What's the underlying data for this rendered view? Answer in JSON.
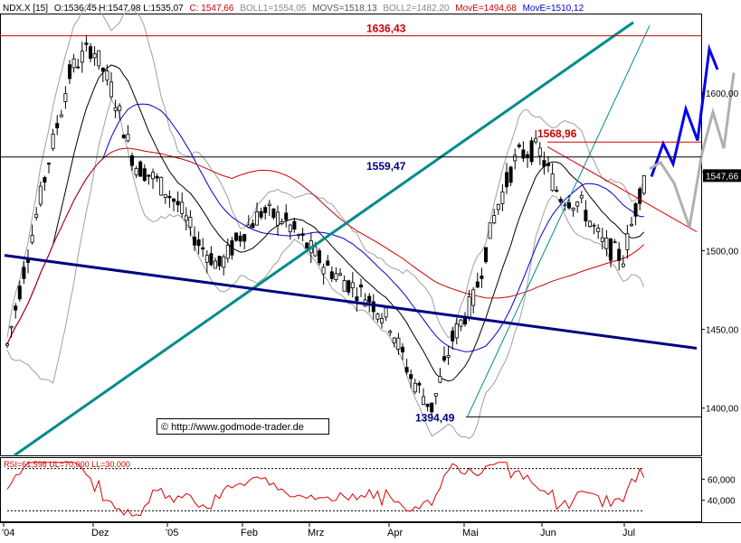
{
  "header": {
    "symbol": "NDX.X [15]",
    "ohl": "O:1536,45 H:1547,98 L:1535,07",
    "close": "C: 1547,66",
    "boll1": "BOLL1=1554,05",
    "movs": "MOVS=1518,13",
    "boll2": "BOLL2=1482,20",
    "move_red": "MovE=1494,68",
    "move_blue": "MovE=1510,12"
  },
  "copyright": "© http://www.godmode-trader.de",
  "price_panel": {
    "y_ticks": [
      "1600,00",
      "1550,00",
      "1500,00",
      "1450,00",
      "1400,00"
    ],
    "ylim": [
      1370,
      1650
    ],
    "last_price_label": "1547,66",
    "levels": [
      {
        "label": "1636,43",
        "value": 1636.43,
        "color": "#cc0000",
        "line": "#cc0000"
      },
      {
        "label": "1559,47",
        "value": 1559.47,
        "color": "#000080",
        "line": "#000000"
      },
      {
        "label": "1568,96",
        "value": 1568.96,
        "color": "#cc0000",
        "line": "#cc0000"
      },
      {
        "label": "1394,49",
        "value": 1394.49,
        "color": "#000080",
        "line": "#000000"
      }
    ]
  },
  "rsi_panel": {
    "label": "RSI=61,598 UL=70,000 LL=30,000",
    "y_ticks": [
      "60,000",
      "40,000"
    ],
    "upper": 70,
    "lower": 30,
    "value": 61.598
  },
  "x_ticks": [
    "'04",
    "Dez",
    "'05",
    "Feb",
    "Mrz",
    "Apr",
    "Mai",
    "Jun",
    "Jul"
  ],
  "colors": {
    "candle": "#000000",
    "bollinger": "#a0a0a0",
    "ma_short": "#000000",
    "ma_blue": "#0000cc",
    "ma_red": "#cc0000",
    "trend_teal": "#008b8b",
    "trend_navy": "#000080",
    "projection_blue": "#0000ee",
    "projection_gray": "#b0b0b0",
    "rsi": "#dd0000"
  },
  "chart_data": {
    "type": "candlestick",
    "title": "NDX.X",
    "x": [
      "Nov 2004",
      "Dez",
      "Jan 2005",
      "Feb",
      "Mrz",
      "Apr",
      "Mai",
      "Jun",
      "Jul"
    ],
    "close_path": [
      1440,
      1500,
      1560,
      1615,
      1630,
      1600,
      1555,
      1545,
      1530,
      1505,
      1490,
      1510,
      1525,
      1520,
      1505,
      1490,
      1480,
      1470,
      1455,
      1420,
      1400,
      1445,
      1470,
      1525,
      1560,
      1565,
      1535,
      1530,
      1505,
      1495,
      1547.66
    ],
    "series": [
      {
        "name": "BOLL1",
        "last": 1554.05
      },
      {
        "name": "MOVS",
        "last": 1518.13
      },
      {
        "name": "BOLL2",
        "last": 1482.2
      },
      {
        "name": "MovE",
        "last": 1494.68
      },
      {
        "name": "MovE",
        "last": 1510.12
      }
    ],
    "annotations": [
      "1636,43",
      "1559,47",
      "1568,96",
      "1394,49"
    ],
    "rsi": 61.598
  }
}
